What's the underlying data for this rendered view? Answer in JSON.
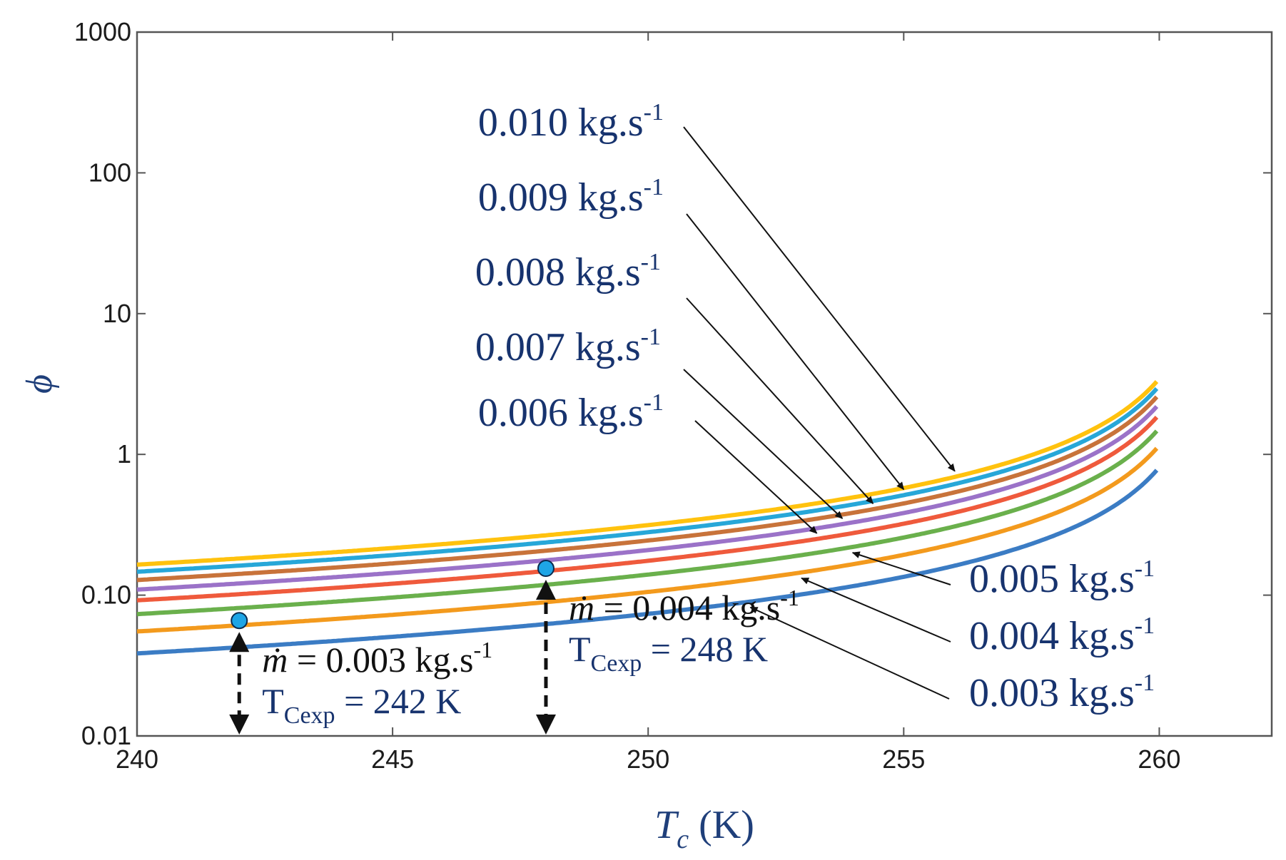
{
  "chart_data": {
    "type": "line",
    "y_scale": "log",
    "xlabel_main": "T",
    "xlabel_sub": "c",
    "xlabel_unit": " (K)",
    "ylabel": "ϕ",
    "xlim": [
      240,
      262.2
    ],
    "ylim": [
      0.01,
      1000
    ],
    "x_ticks": [
      240,
      245,
      250,
      255,
      260
    ],
    "y_ticks": [
      0.01,
      0.1,
      1,
      10,
      100,
      1000
    ],
    "x_tick_labels": [
      "240",
      "245",
      "250",
      "255",
      "260"
    ],
    "y_tick_labels": [
      "0.01",
      "0.10",
      "1",
      "10",
      "100",
      "1000"
    ],
    "x_end": 260,
    "series": [
      {
        "name": "0.003 kg.s-1",
        "color": "#3b7cc4",
        "c": 0.81
      },
      {
        "name": "0.004 kg.s-1",
        "color": "#f39a1d",
        "c": 1.16
      },
      {
        "name": "0.005 kg.s-1",
        "color": "#6ab04c",
        "c": 1.54
      },
      {
        "name": "0.006 kg.s-1",
        "color": "#ef5a3c",
        "c": 1.93
      },
      {
        "name": "0.007 kg.s-1",
        "color": "#9b72c8",
        "c": 2.3
      },
      {
        "name": "0.008 kg.s-1",
        "color": "#c8733a",
        "c": 2.69
      },
      {
        "name": "0.009 kg.s-1",
        "color": "#27a7d8",
        "c": 3.08
      },
      {
        "name": "0.010 kg.s-1",
        "color": "#ffc20e",
        "c": 3.46
      }
    ],
    "series_labels": [
      {
        "value": "0.010",
        "unit": " kg.s",
        "exp": "-1",
        "target_x": 256,
        "target_series": 7
      },
      {
        "value": "0.009",
        "unit": " kg.s",
        "exp": "-1",
        "target_x": 255,
        "target_series": 6
      },
      {
        "value": "0.008",
        "unit": " kg.s",
        "exp": "-1",
        "target_x": 254.4,
        "target_series": 5
      },
      {
        "value": "0.007",
        "unit": " kg.s",
        "exp": "-1",
        "target_x": 253.8,
        "target_series": 4
      },
      {
        "value": "0.006",
        "unit": " kg.s",
        "exp": "-1",
        "target_x": 253.3,
        "target_series": 3
      },
      {
        "value": "0.005",
        "unit": " kg.s",
        "exp": "-1",
        "target_x": 254,
        "target_series": 2
      },
      {
        "value": "0.004",
        "unit": " kg.s",
        "exp": "-1",
        "target_x": 253,
        "target_series": 1
      },
      {
        "value": "0.003",
        "unit": " kg.s",
        "exp": "-1",
        "target_x": 252,
        "target_series": 0
      }
    ],
    "experimental_points": [
      {
        "x": 242,
        "y": 0.066,
        "mdot_symbol": "ṁ",
        "mdot_text": " = 0.003 kg.s",
        "mdot_exp": "-1",
        "t_main": "T",
        "t_sub": "Cexp",
        "t_value": " = 242 K"
      },
      {
        "x": 248,
        "y": 0.155,
        "mdot_symbol": "ṁ",
        "mdot_text": " = 0.004 kg.s",
        "mdot_exp": "-1",
        "t_main": "T",
        "t_sub": "Cexp",
        "t_value": " = 248 K"
      }
    ],
    "point_color": "#1ea5e6"
  }
}
